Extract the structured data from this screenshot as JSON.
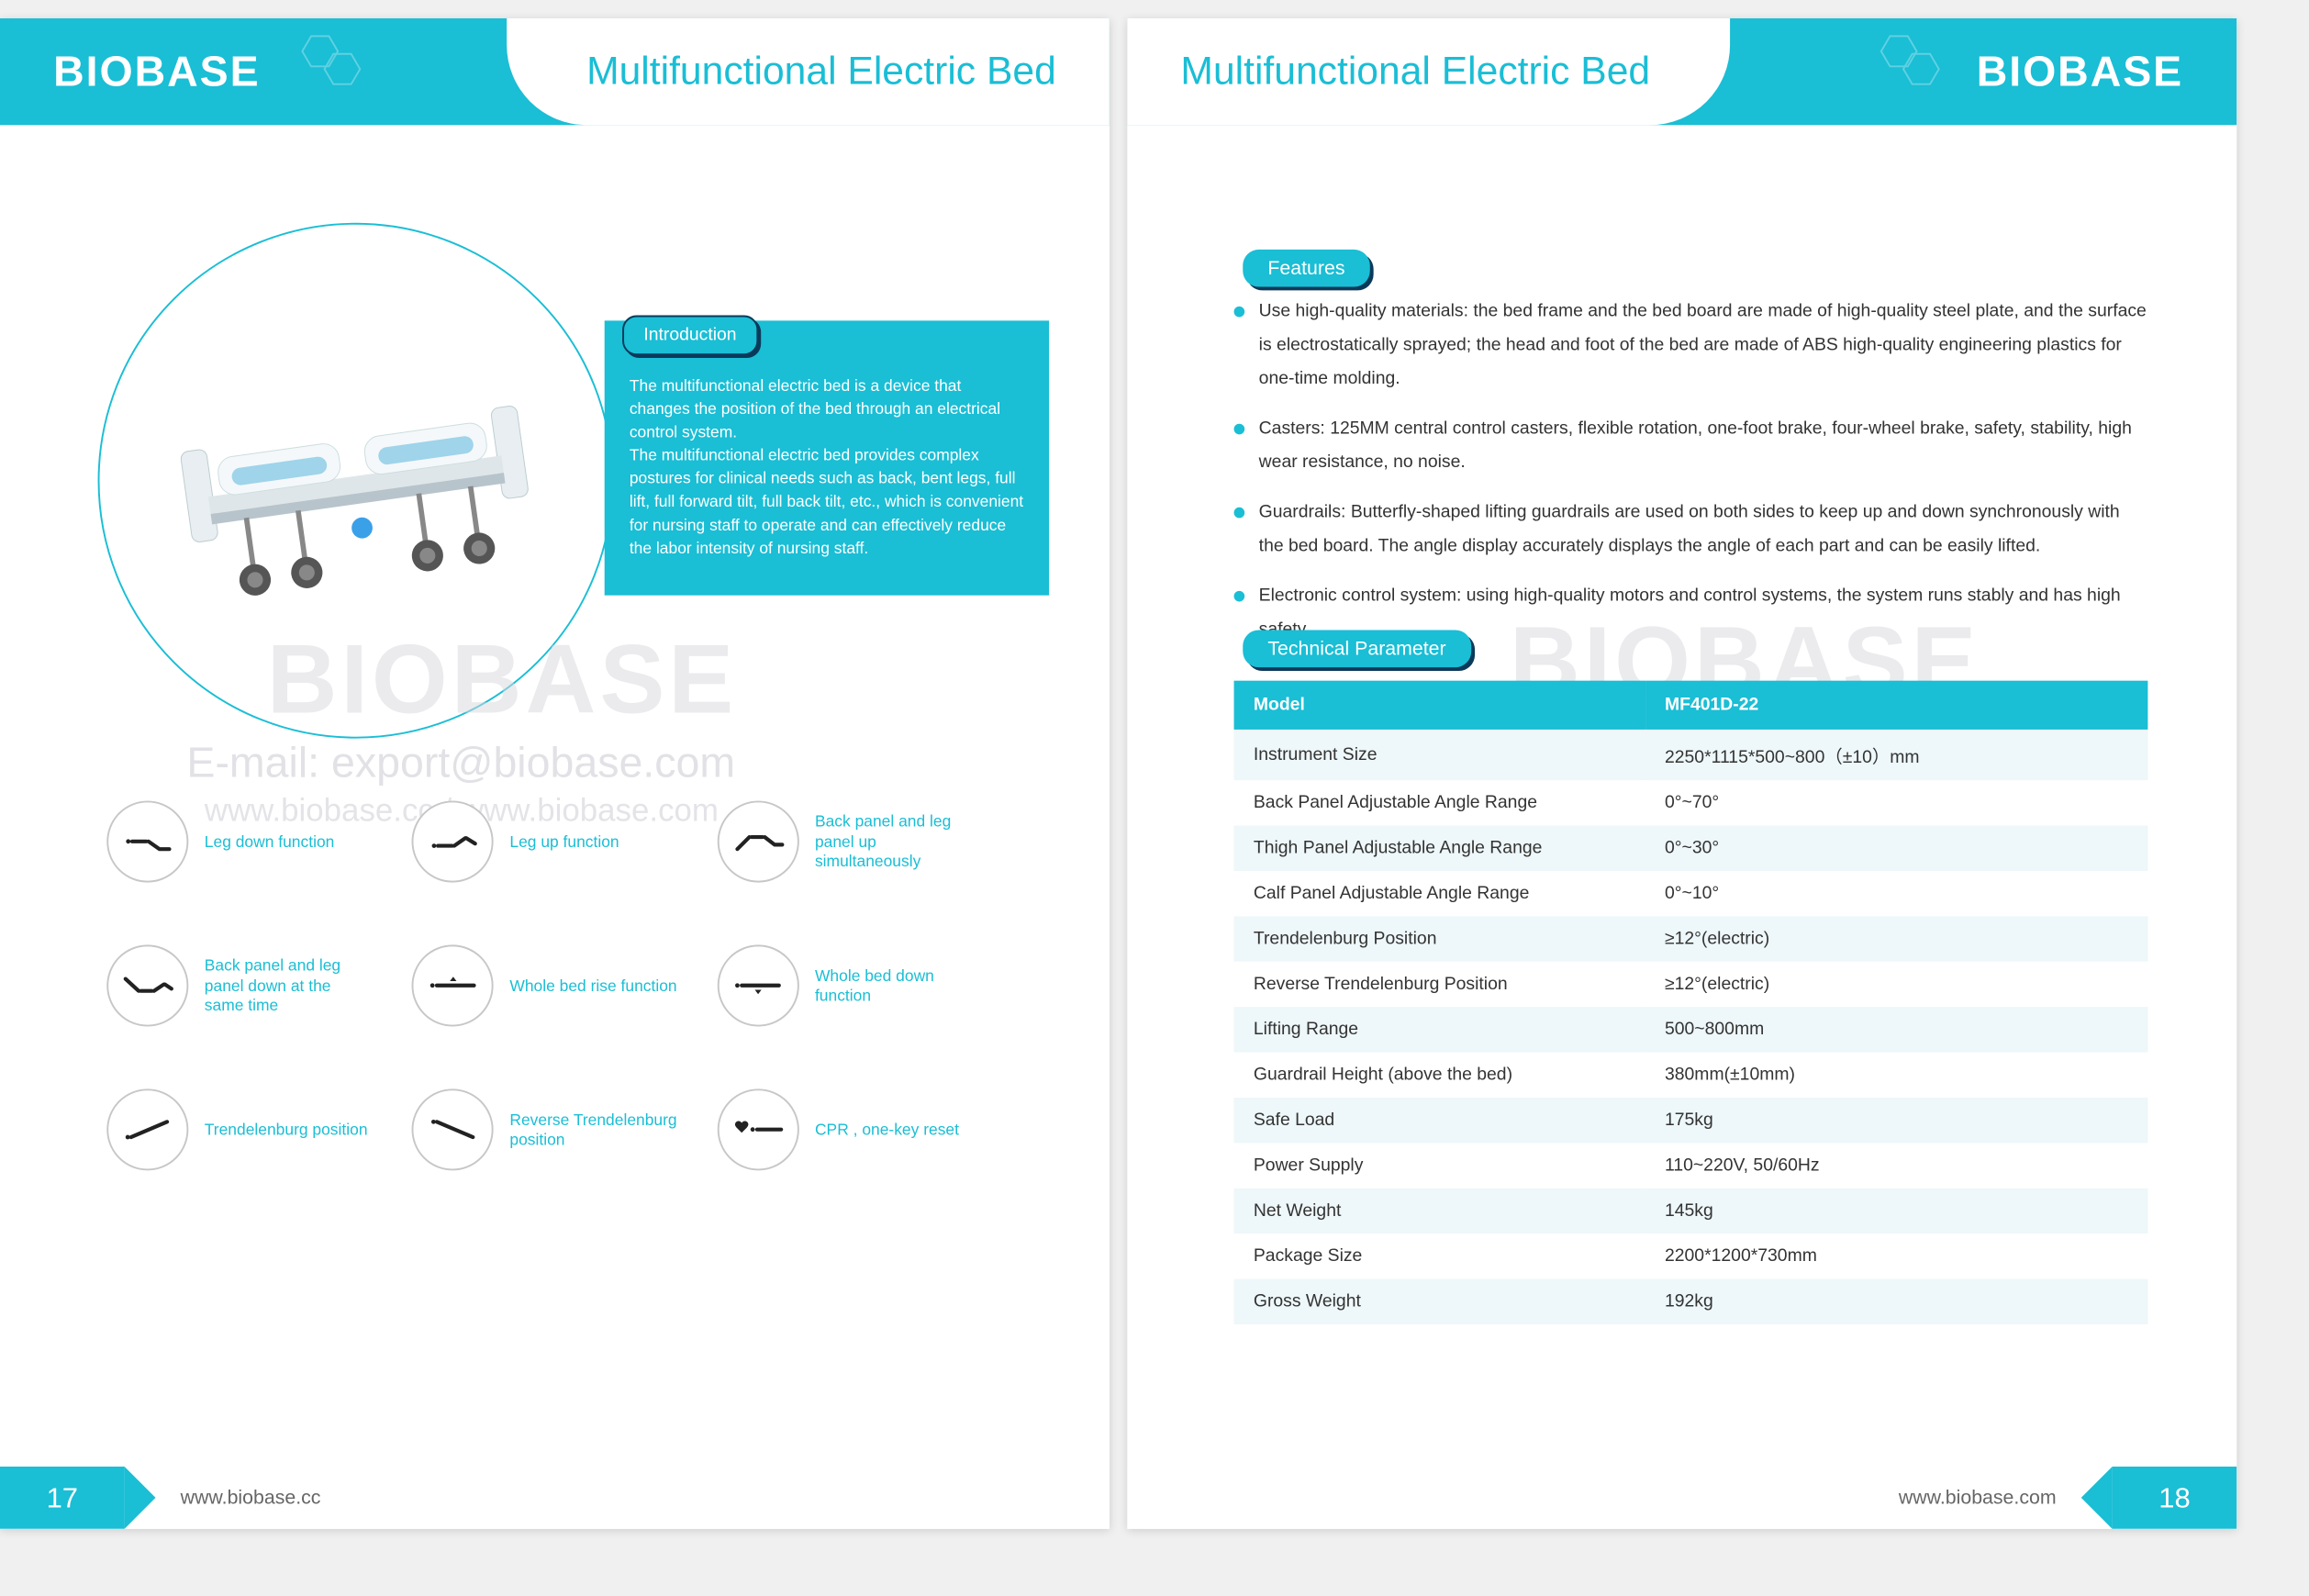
{
  "colors": {
    "brand": "#1abed5",
    "brand_dark": "#0a3a5a",
    "text": "#333333",
    "watermark": "#d9d9df",
    "icon_border": "#c7c7c7",
    "row_alt": "#eef7f9",
    "white": "#ffffff",
    "footer_text": "#666666"
  },
  "brand_name": "BIOBASE",
  "page_title": "Multifunctional Electric Bed",
  "watermark_brand": "BIOBASE",
  "watermark_email": "E-mail: export@biobase.com",
  "watermark_urls": "www.biobase.cc / www.biobase.com",
  "left": {
    "intro_label": "Introduction",
    "intro_body_1": "The multifunctional electric bed is a device that changes the position of the bed through an electrical control system.",
    "intro_body_2": "The multifunctional electric bed provides complex postures for clinical needs such as back, bent legs, full lift, full forward tilt, full back tilt, etc., which is convenient for nursing staff to operate and can effectively reduce the labor intensity of nursing staff.",
    "functions": [
      {
        "label": "Leg down function",
        "icon": "leg-down"
      },
      {
        "label": "Leg up function",
        "icon": "leg-up"
      },
      {
        "label": "Back panel and leg panel up simultaneously",
        "icon": "both-up"
      },
      {
        "label": "Back panel and leg panel down at the same time",
        "icon": "both-down"
      },
      {
        "label": "Whole bed rise function",
        "icon": "bed-rise"
      },
      {
        "label": "Whole bed down function",
        "icon": "bed-down"
      },
      {
        "label": "Trendelenburg position",
        "icon": "trend"
      },
      {
        "label": "Reverse Trendelenburg position",
        "icon": "rev-trend"
      },
      {
        "label": "CPR , one-key reset",
        "icon": "cpr"
      }
    ],
    "page_no": "17",
    "footer_url": "www.biobase.cc"
  },
  "right": {
    "features_label": "Features",
    "features": [
      "Use high-quality materials: the bed frame and the bed board are made of high-quality steel plate, and the surface is electrostatically sprayed; the head and foot of the bed are made of ABS high-quality engineering plastics for one-time molding.",
      "Casters: 125MM central control casters, flexible rotation, one-foot brake, four-wheel brake, safety, stability, high wear resistance, no noise.",
      "Guardrails: Butterfly-shaped lifting guardrails are used on both sides to keep up and down synchronously with the bed board. The angle display accurately displays the angle of each part and can be easily lifted.",
      "Electronic control system: using high-quality motors and control systems, the system runs stably and has high safety."
    ],
    "tech_label": "Technical Parameter",
    "tech_header": [
      "Model",
      "MF401D-22"
    ],
    "tech_rows": [
      [
        "Instrument Size",
        "2250*1115*500~800（±10）mm"
      ],
      [
        "Back Panel Adjustable Angle Range",
        "0°~70°"
      ],
      [
        "Thigh Panel Adjustable Angle Range",
        "0°~30°"
      ],
      [
        "Calf Panel Adjustable Angle Range",
        "0°~10°"
      ],
      [
        "Trendelenburg Position",
        "≥12°(electric)"
      ],
      [
        "Reverse Trendelenburg Position",
        "≥12°(electric)"
      ],
      [
        "Lifting Range",
        "500~800mm"
      ],
      [
        "Guardrail Height (above the bed)",
        "380mm(±10mm)"
      ],
      [
        "Safe Load",
        "175kg"
      ],
      [
        "Power Supply",
        "110~220V, 50/60Hz"
      ],
      [
        "Net Weight",
        "145kg"
      ],
      [
        "Package Size",
        "2200*1200*730mm"
      ],
      [
        "Gross Weight",
        "192kg"
      ]
    ],
    "page_no": "18",
    "footer_url": "www.biobase.com"
  }
}
